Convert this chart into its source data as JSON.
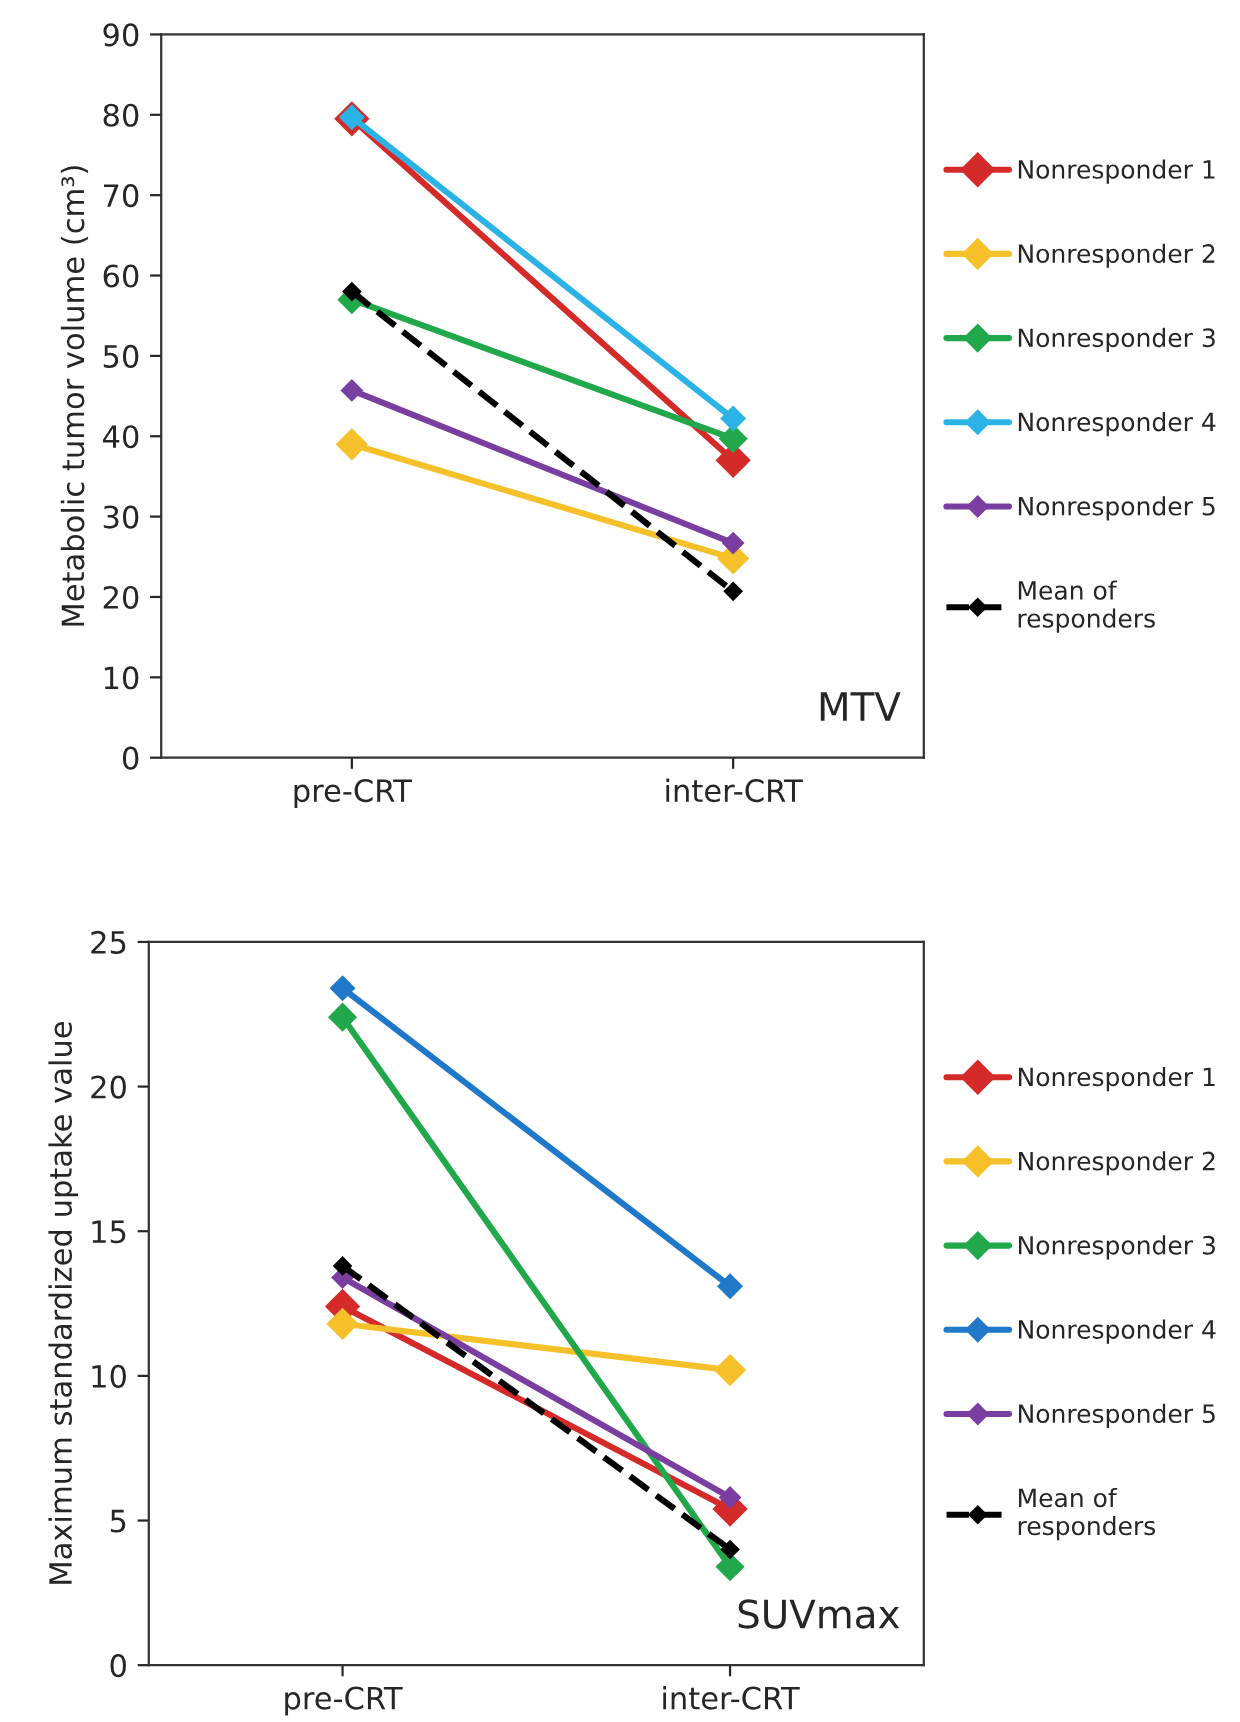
{
  "chart_data": [
    {
      "type": "line",
      "ylabel": "Metabolic tumor volume (cm³)",
      "categories": [
        "pre-CRT",
        "inter-CRT"
      ],
      "ylim": [
        0,
        90
      ],
      "yticks": [
        0,
        10,
        20,
        30,
        40,
        50,
        60,
        70,
        80,
        90
      ],
      "marker": "diamond",
      "legend": "right",
      "grid": false,
      "annotations": [
        "MTV"
      ],
      "series": [
        {
          "name": "Nonresponder 1",
          "color": "#d42a2a",
          "values": [
            79.5,
            37
          ]
        },
        {
          "name": "Nonresponder 2",
          "color": "#f5c02a",
          "values": [
            39,
            24.8
          ]
        },
        {
          "name": "Nonresponder 3",
          "color": "#21a84a",
          "values": [
            57,
            39.7
          ]
        },
        {
          "name": "Nonresponder 4",
          "color": "#2bb3e6",
          "values": [
            79.7,
            42.2
          ]
        },
        {
          "name": "Nonresponder 5",
          "color": "#7a3da0",
          "values": [
            45.7,
            26.7
          ]
        },
        {
          "name": "Mean of\nresponders",
          "color": "#000000",
          "line_style": "dashed",
          "values": [
            58,
            20.7
          ]
        }
      ]
    },
    {
      "type": "line",
      "ylabel": "Maximum standardized uptake value",
      "categories": [
        "pre-CRT",
        "inter-CRT"
      ],
      "ylim": [
        0,
        25
      ],
      "yticks": [
        0,
        5,
        10,
        15,
        20,
        25
      ],
      "marker": "diamond",
      "legend": "right",
      "grid": false,
      "annotations": [
        "SUVmax"
      ],
      "series": [
        {
          "name": "Nonresponder 1",
          "color": "#d42a2a",
          "values": [
            12.4,
            5.4
          ]
        },
        {
          "name": "Nonresponder 2",
          "color": "#f5c02a",
          "values": [
            11.8,
            10.2
          ]
        },
        {
          "name": "Nonresponder 3",
          "color": "#21a84a",
          "values": [
            22.4,
            3.4
          ]
        },
        {
          "name": "Nonresponder 4",
          "color": "#1f78c8",
          "values": [
            23.4,
            13.1
          ]
        },
        {
          "name": "Nonresponder 5",
          "color": "#7a3da0",
          "values": [
            13.4,
            5.8
          ]
        },
        {
          "name": "Mean of\nresponders",
          "color": "#000000",
          "line_style": "dashed",
          "values": [
            13.8,
            4.0
          ]
        }
      ]
    }
  ]
}
